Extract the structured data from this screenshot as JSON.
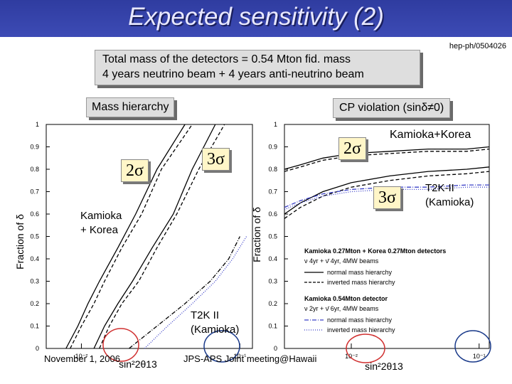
{
  "header": {
    "title": "Expected sensitivity (2)",
    "reference": "hep-ph/0504026"
  },
  "info_box": {
    "line1": "Total mass of the detectors =  0.54 Mton fid. mass",
    "line2": "4 years neutrino beam + 4 years anti-neutrino beam"
  },
  "left_panel": {
    "label": "Mass hierarchy",
    "sigma2": "2σ",
    "sigma3": "3σ",
    "kamioka_korea": [
      "Kamioka",
      "+ Korea"
    ],
    "t2k": [
      "T2K II",
      "(Kamioka)"
    ]
  },
  "right_panel": {
    "label": "CP violation (sinδ≠0)",
    "sigma2": "2σ",
    "sigma3": "3σ",
    "kamioka_korea": "Kamioka+Korea",
    "t2k": [
      "T2K-II",
      "(Kamioka)"
    ]
  },
  "legend": {
    "group1": "Kamioka 0.27Mton + Korea 0.27Mton detectors",
    "group1_beam": "ν 4yr + ν̄ 4yr, 4MW beams",
    "group2": "Kamioka 0.54Mton detector",
    "group2_beam": "ν 2yr + ν̄ 6yr, 4MW beams",
    "normal": "normal mass hierarchy",
    "inverted": "inverted mass hierarchy"
  },
  "footer": {
    "date": "November 1, 2006",
    "meeting": "JPS-APS Joint meeting@Hawaii"
  },
  "colors": {
    "title_bar": "#3d4bb5",
    "curve_black": "#000000",
    "curve_blue": "#3a40c8",
    "circle_red": "#d03030",
    "circle_blue": "#1a3a8a"
  },
  "chart_data": [
    {
      "type": "line",
      "title": "Mass hierarchy",
      "xlabel": "sin²2θ13",
      "ylabel": "Fraction of δ",
      "xscale": "log",
      "xlim": [
        0.006,
        0.12
      ],
      "ylim": [
        0,
        1
      ],
      "x_tick_labels": [
        "10⁻²",
        "10⁻¹"
      ],
      "y_tick_labels": [
        "0",
        "0.1",
        "0.2",
        "0.3",
        "0.4",
        "0.5",
        "0.6",
        "0.7",
        "0.8",
        "0.9",
        "1"
      ],
      "series": [
        {
          "name": "Kamioka+Korea 2σ normal",
          "style": "solid",
          "color": "#000000",
          "x": [
            0.008,
            0.0095,
            0.011,
            0.013,
            0.017,
            0.022,
            0.03,
            0.045
          ],
          "y": [
            0.0,
            0.1,
            0.2,
            0.3,
            0.45,
            0.6,
            0.8,
            1.0
          ]
        },
        {
          "name": "Kamioka+Korea 2σ inverted",
          "style": "dashed",
          "color": "#000000",
          "x": [
            0.0085,
            0.01,
            0.012,
            0.014,
            0.018,
            0.024,
            0.032,
            0.05
          ],
          "y": [
            0.0,
            0.1,
            0.2,
            0.3,
            0.45,
            0.6,
            0.8,
            1.0
          ]
        },
        {
          "name": "Kamioka+Korea 3σ normal",
          "style": "solid",
          "color": "#000000",
          "x": [
            0.012,
            0.014,
            0.017,
            0.021,
            0.028,
            0.038,
            0.05,
            0.07
          ],
          "y": [
            0.0,
            0.1,
            0.2,
            0.3,
            0.45,
            0.6,
            0.8,
            1.0
          ]
        },
        {
          "name": "Kamioka+Korea 3σ inverted",
          "style": "dashed",
          "color": "#000000",
          "x": [
            0.013,
            0.015,
            0.018,
            0.023,
            0.03,
            0.04,
            0.055,
            0.08
          ],
          "y": [
            0.0,
            0.1,
            0.2,
            0.3,
            0.45,
            0.6,
            0.8,
            1.0
          ]
        },
        {
          "name": "T2K II normal",
          "style": "dashdot",
          "color": "#000000",
          "x": [
            0.02,
            0.03,
            0.045,
            0.065,
            0.085,
            0.1
          ],
          "y": [
            0.0,
            0.1,
            0.2,
            0.3,
            0.4,
            0.5
          ]
        },
        {
          "name": "T2K II inverted",
          "style": "dotted",
          "color": "#3a40c8",
          "x": [
            0.025,
            0.035,
            0.05,
            0.07,
            0.09,
            0.11
          ],
          "y": [
            0.0,
            0.1,
            0.2,
            0.3,
            0.4,
            0.5
          ]
        }
      ]
    },
    {
      "type": "line",
      "title": "CP violation (sinδ≠0)",
      "xlabel": "sin²2θ13",
      "ylabel": "Fraction of δ",
      "xscale": "log",
      "xlim": [
        0.003,
        0.12
      ],
      "ylim": [
        0,
        1
      ],
      "x_tick_labels": [
        "10⁻²",
        "10⁻¹"
      ],
      "y_tick_labels": [
        "0",
        "0.1",
        "0.2",
        "0.3",
        "0.4",
        "0.5",
        "0.6",
        "0.7",
        "0.8",
        "0.9",
        "1"
      ],
      "series": [
        {
          "name": "Kamioka+Korea 2σ normal",
          "style": "solid",
          "color": "#000000",
          "x": [
            0.003,
            0.004,
            0.006,
            0.01,
            0.02,
            0.04,
            0.08,
            0.12
          ],
          "y": [
            0.8,
            0.82,
            0.85,
            0.87,
            0.88,
            0.89,
            0.89,
            0.9
          ]
        },
        {
          "name": "Kamioka+Korea 2σ inverted",
          "style": "dashed",
          "color": "#000000",
          "x": [
            0.003,
            0.004,
            0.006,
            0.01,
            0.02,
            0.04,
            0.08,
            0.12
          ],
          "y": [
            0.79,
            0.81,
            0.84,
            0.86,
            0.87,
            0.88,
            0.88,
            0.89
          ]
        },
        {
          "name": "Kamioka+Korea 3σ normal",
          "style": "solid",
          "color": "#000000",
          "x": [
            0.003,
            0.004,
            0.006,
            0.01,
            0.02,
            0.04,
            0.08,
            0.12
          ],
          "y": [
            0.6,
            0.65,
            0.7,
            0.74,
            0.77,
            0.79,
            0.8,
            0.81
          ]
        },
        {
          "name": "Kamioka+Korea 3σ inverted",
          "style": "dashed",
          "color": "#000000",
          "x": [
            0.003,
            0.004,
            0.006,
            0.01,
            0.02,
            0.04,
            0.08,
            0.12
          ],
          "y": [
            0.58,
            0.63,
            0.68,
            0.72,
            0.75,
            0.77,
            0.78,
            0.79
          ]
        },
        {
          "name": "T2K-II normal",
          "style": "dashdot",
          "color": "#3a40c8",
          "x": [
            0.003,
            0.004,
            0.006,
            0.01,
            0.02,
            0.04,
            0.08,
            0.12
          ],
          "y": [
            0.63,
            0.66,
            0.69,
            0.71,
            0.72,
            0.72,
            0.73,
            0.73
          ]
        },
        {
          "name": "T2K-II inverted",
          "style": "dotted",
          "color": "#3a40c8",
          "x": [
            0.003,
            0.004,
            0.006,
            0.01,
            0.02,
            0.04,
            0.08,
            0.12
          ],
          "y": [
            0.62,
            0.65,
            0.68,
            0.7,
            0.71,
            0.71,
            0.72,
            0.72
          ]
        }
      ]
    }
  ]
}
